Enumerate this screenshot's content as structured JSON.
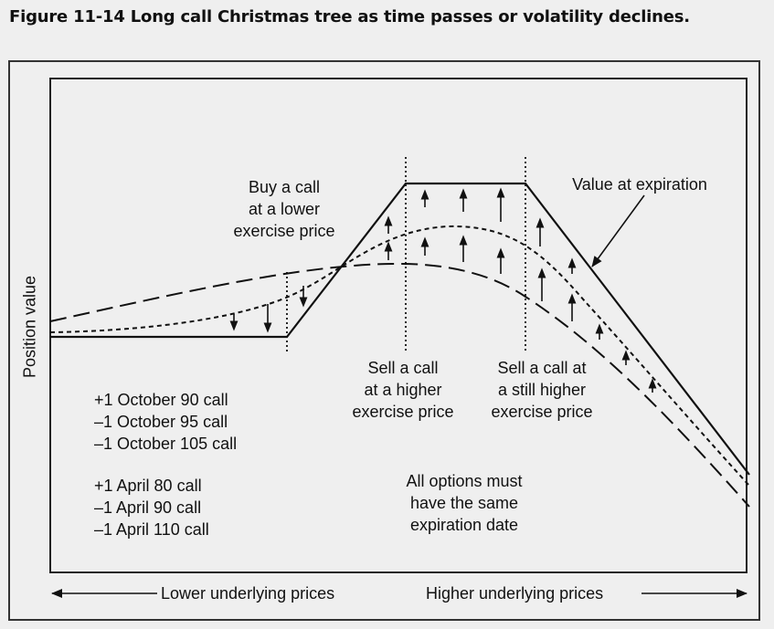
{
  "figure_title": "Figure 11-14  Long call Christmas tree as time passes or volatility declines.",
  "y_axis_label": "Position value",
  "x_axis": {
    "left_label": "Lower underlying prices",
    "right_label": "Higher underlying prices"
  },
  "annotations": {
    "buy_call": [
      "Buy a call",
      "at a lower",
      "exercise price"
    ],
    "sell_call_higher": [
      "Sell a call",
      "at a higher",
      "exercise price"
    ],
    "sell_call_still_higher": [
      "Sell a call at",
      "a still higher",
      "exercise price"
    ],
    "value_at_expiration": "Value at expiration",
    "same_expiration": [
      "All options must",
      "have the same",
      "expiration date"
    ]
  },
  "examples": {
    "set1": [
      "+1 October 90 call",
      "–1 October 95 call",
      "–1 October 105 call"
    ],
    "set2": [
      "+1 April 80 call",
      "–1 April 90 call",
      "–1 April 110 call"
    ]
  },
  "curves": [
    {
      "name": "Value at expiration",
      "style": "solid"
    },
    {
      "name": "",
      "style": "short-dash"
    },
    {
      "name": "",
      "style": "long-dash"
    }
  ],
  "colors": {
    "background": "#efefef",
    "line": "#111111"
  }
}
